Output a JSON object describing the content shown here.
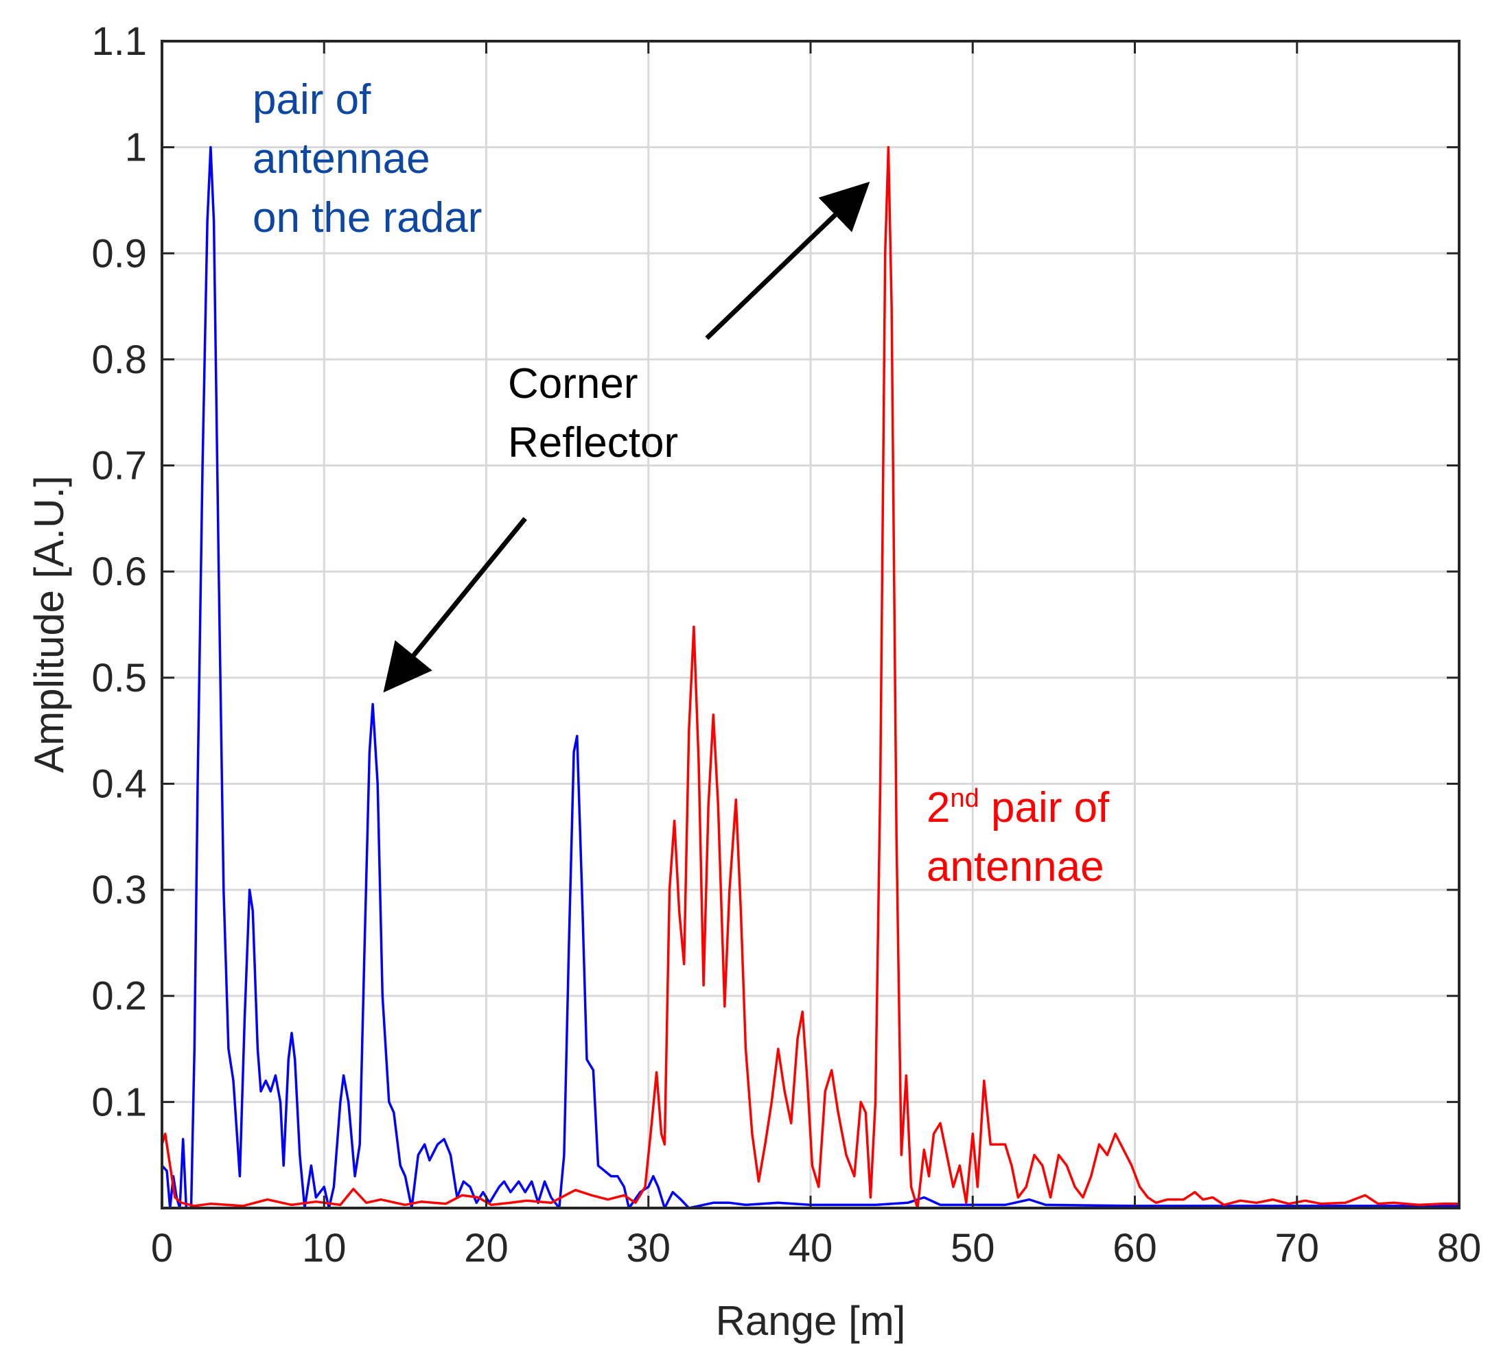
{
  "chart_data": {
    "type": "line",
    "title": "",
    "xlabel": "Range [m]",
    "ylabel": "Amplitude [A.U.]",
    "xlim": [
      0,
      80
    ],
    "ylim": [
      0,
      1.1
    ],
    "grid": true,
    "x_ticks": [
      0,
      10,
      20,
      30,
      40,
      50,
      60,
      70,
      80
    ],
    "x_tick_labels": [
      "0",
      "10",
      "20",
      "30",
      "40",
      "50",
      "60",
      "70",
      "80"
    ],
    "y_ticks": [
      0.1,
      0.2,
      0.3,
      0.4,
      0.5,
      0.6,
      0.7,
      0.8,
      0.9,
      1.0,
      1.1
    ],
    "y_tick_labels": [
      "0.1",
      "0.2",
      "0.3",
      "0.4",
      "0.5",
      "0.6",
      "0.7",
      "0.8",
      "0.9",
      "1",
      "1.1"
    ],
    "series": [
      {
        "name": "pair of antennae on the radar",
        "color": "#0000ff",
        "points": [
          [
            0,
            0.04
          ],
          [
            0.3,
            0.035
          ],
          [
            0.5,
            0.0
          ],
          [
            0.7,
            0.03
          ],
          [
            0.9,
            0.01
          ],
          [
            1.1,
            0.0
          ],
          [
            1.3,
            0.065
          ],
          [
            1.5,
            0.0
          ],
          [
            1.8,
            0.0
          ],
          [
            2.0,
            0.15
          ],
          [
            2.2,
            0.4
          ],
          [
            2.5,
            0.7
          ],
          [
            2.8,
            0.93
          ],
          [
            3.0,
            1.0
          ],
          [
            3.2,
            0.93
          ],
          [
            3.5,
            0.6
          ],
          [
            3.8,
            0.3
          ],
          [
            4.1,
            0.15
          ],
          [
            4.4,
            0.12
          ],
          [
            4.8,
            0.03
          ],
          [
            5.1,
            0.18
          ],
          [
            5.4,
            0.3
          ],
          [
            5.6,
            0.28
          ],
          [
            5.9,
            0.15
          ],
          [
            6.1,
            0.11
          ],
          [
            6.4,
            0.12
          ],
          [
            6.7,
            0.11
          ],
          [
            7.0,
            0.125
          ],
          [
            7.3,
            0.1
          ],
          [
            7.5,
            0.04
          ],
          [
            7.8,
            0.14
          ],
          [
            8.0,
            0.165
          ],
          [
            8.2,
            0.14
          ],
          [
            8.5,
            0.05
          ],
          [
            8.8,
            0.0
          ],
          [
            9.2,
            0.04
          ],
          [
            9.5,
            0.01
          ],
          [
            10.0,
            0.02
          ],
          [
            10.3,
            0.0
          ],
          [
            10.6,
            0.02
          ],
          [
            11.0,
            0.1
          ],
          [
            11.2,
            0.125
          ],
          [
            11.5,
            0.1
          ],
          [
            11.9,
            0.03
          ],
          [
            12.2,
            0.06
          ],
          [
            12.5,
            0.25
          ],
          [
            12.8,
            0.43
          ],
          [
            13.0,
            0.475
          ],
          [
            13.3,
            0.4
          ],
          [
            13.6,
            0.2
          ],
          [
            14.0,
            0.1
          ],
          [
            14.3,
            0.09
          ],
          [
            14.7,
            0.04
          ],
          [
            15.0,
            0.03
          ],
          [
            15.4,
            0.0
          ],
          [
            15.8,
            0.05
          ],
          [
            16.2,
            0.06
          ],
          [
            16.5,
            0.045
          ],
          [
            17.0,
            0.06
          ],
          [
            17.4,
            0.065
          ],
          [
            17.8,
            0.05
          ],
          [
            18.2,
            0.01
          ],
          [
            18.6,
            0.025
          ],
          [
            19.0,
            0.02
          ],
          [
            19.4,
            0.005
          ],
          [
            19.8,
            0.015
          ],
          [
            20.2,
            0.005
          ],
          [
            20.8,
            0.02
          ],
          [
            21.1,
            0.025
          ],
          [
            21.5,
            0.015
          ],
          [
            22.0,
            0.025
          ],
          [
            22.4,
            0.015
          ],
          [
            22.8,
            0.025
          ],
          [
            23.2,
            0.005
          ],
          [
            23.6,
            0.025
          ],
          [
            24.0,
            0.01
          ],
          [
            24.5,
            0.0
          ],
          [
            24.8,
            0.05
          ],
          [
            25.1,
            0.25
          ],
          [
            25.4,
            0.43
          ],
          [
            25.6,
            0.445
          ],
          [
            25.9,
            0.3
          ],
          [
            26.2,
            0.14
          ],
          [
            26.6,
            0.13
          ],
          [
            26.9,
            0.04
          ],
          [
            27.3,
            0.035
          ],
          [
            27.7,
            0.03
          ],
          [
            28.1,
            0.03
          ],
          [
            28.5,
            0.02
          ],
          [
            28.8,
            0.0
          ],
          [
            29.5,
            0.015
          ],
          [
            30.0,
            0.02
          ],
          [
            30.3,
            0.03
          ],
          [
            30.6,
            0.02
          ],
          [
            31.0,
            0.0
          ],
          [
            31.5,
            0.015
          ],
          [
            32.0,
            0.008
          ],
          [
            32.5,
            0.0
          ],
          [
            34.0,
            0.005
          ],
          [
            35.0,
            0.005
          ],
          [
            36.0,
            0.003
          ],
          [
            38.0,
            0.005
          ],
          [
            40.0,
            0.003
          ],
          [
            42.0,
            0.003
          ],
          [
            44.0,
            0.003
          ],
          [
            46.0,
            0.005
          ],
          [
            47.0,
            0.01
          ],
          [
            48.0,
            0.003
          ],
          [
            52.0,
            0.003
          ],
          [
            53.5,
            0.008
          ],
          [
            54.5,
            0.003
          ],
          [
            60.0,
            0.002
          ],
          [
            70.0,
            0.002
          ],
          [
            80.0,
            0.002
          ]
        ]
      },
      {
        "name": "2nd pair of antennae",
        "color": "#ff0000",
        "points": [
          [
            0,
            0.06
          ],
          [
            0.2,
            0.07
          ],
          [
            0.5,
            0.04
          ],
          [
            0.8,
            0.01
          ],
          [
            1.2,
            0.005
          ],
          [
            2,
            0.002
          ],
          [
            3,
            0.004
          ],
          [
            5,
            0.002
          ],
          [
            6.5,
            0.008
          ],
          [
            8,
            0.003
          ],
          [
            9.5,
            0.006
          ],
          [
            11,
            0.003
          ],
          [
            11.8,
            0.018
          ],
          [
            12.6,
            0.005
          ],
          [
            13.5,
            0.008
          ],
          [
            15,
            0.003
          ],
          [
            16,
            0.006
          ],
          [
            17.5,
            0.004
          ],
          [
            18.5,
            0.012
          ],
          [
            19.5,
            0.01
          ],
          [
            20.3,
            0.003
          ],
          [
            21.5,
            0.005
          ],
          [
            22.5,
            0.007
          ],
          [
            24,
            0.005
          ],
          [
            25.5,
            0.017
          ],
          [
            26.5,
            0.012
          ],
          [
            27.5,
            0.008
          ],
          [
            28.5,
            0.012
          ],
          [
            29.2,
            0.005
          ],
          [
            29.8,
            0.02
          ],
          [
            30.2,
            0.08
          ],
          [
            30.5,
            0.128
          ],
          [
            30.8,
            0.07
          ],
          [
            31.0,
            0.06
          ],
          [
            31.3,
            0.3
          ],
          [
            31.6,
            0.365
          ],
          [
            31.9,
            0.28
          ],
          [
            32.2,
            0.23
          ],
          [
            32.5,
            0.45
          ],
          [
            32.8,
            0.548
          ],
          [
            33.1,
            0.42
          ],
          [
            33.4,
            0.21
          ],
          [
            33.7,
            0.38
          ],
          [
            34.0,
            0.465
          ],
          [
            34.3,
            0.38
          ],
          [
            34.7,
            0.19
          ],
          [
            35.0,
            0.3
          ],
          [
            35.4,
            0.385
          ],
          [
            35.7,
            0.28
          ],
          [
            36.0,
            0.15
          ],
          [
            36.4,
            0.07
          ],
          [
            36.8,
            0.025
          ],
          [
            37.2,
            0.06
          ],
          [
            37.6,
            0.1
          ],
          [
            38.0,
            0.15
          ],
          [
            38.4,
            0.11
          ],
          [
            38.8,
            0.08
          ],
          [
            39.2,
            0.16
          ],
          [
            39.5,
            0.185
          ],
          [
            39.8,
            0.12
          ],
          [
            40.1,
            0.04
          ],
          [
            40.5,
            0.02
          ],
          [
            40.9,
            0.11
          ],
          [
            41.3,
            0.13
          ],
          [
            41.7,
            0.09
          ],
          [
            42.2,
            0.05
          ],
          [
            42.7,
            0.03
          ],
          [
            43.1,
            0.1
          ],
          [
            43.4,
            0.09
          ],
          [
            43.7,
            0.01
          ],
          [
            44.0,
            0.1
          ],
          [
            44.3,
            0.4
          ],
          [
            44.6,
            0.9
          ],
          [
            44.8,
            1.0
          ],
          [
            45.0,
            0.85
          ],
          [
            45.3,
            0.35
          ],
          [
            45.6,
            0.05
          ],
          [
            45.9,
            0.125
          ],
          [
            46.2,
            0.02
          ],
          [
            46.6,
            0.0
          ],
          [
            47.0,
            0.055
          ],
          [
            47.3,
            0.03
          ],
          [
            47.6,
            0.07
          ],
          [
            48.0,
            0.08
          ],
          [
            48.4,
            0.05
          ],
          [
            48.8,
            0.02
          ],
          [
            49.2,
            0.04
          ],
          [
            49.6,
            0.005
          ],
          [
            50.0,
            0.07
          ],
          [
            50.3,
            0.02
          ],
          [
            50.7,
            0.12
          ],
          [
            51.1,
            0.06
          ],
          [
            51.5,
            0.06
          ],
          [
            52.0,
            0.06
          ],
          [
            52.4,
            0.04
          ],
          [
            52.8,
            0.01
          ],
          [
            53.3,
            0.02
          ],
          [
            53.8,
            0.05
          ],
          [
            54.3,
            0.04
          ],
          [
            54.8,
            0.01
          ],
          [
            55.3,
            0.05
          ],
          [
            55.8,
            0.04
          ],
          [
            56.3,
            0.02
          ],
          [
            56.8,
            0.01
          ],
          [
            57.3,
            0.03
          ],
          [
            57.8,
            0.06
          ],
          [
            58.3,
            0.05
          ],
          [
            58.8,
            0.07
          ],
          [
            59.3,
            0.055
          ],
          [
            59.8,
            0.04
          ],
          [
            60.3,
            0.02
          ],
          [
            60.8,
            0.01
          ],
          [
            61.3,
            0.005
          ],
          [
            62.0,
            0.008
          ],
          [
            63.0,
            0.008
          ],
          [
            63.7,
            0.015
          ],
          [
            64.2,
            0.008
          ],
          [
            64.8,
            0.01
          ],
          [
            65.5,
            0.003
          ],
          [
            66.5,
            0.007
          ],
          [
            67.5,
            0.005
          ],
          [
            68.5,
            0.008
          ],
          [
            69.5,
            0.004
          ],
          [
            70.5,
            0.007
          ],
          [
            71.5,
            0.004
          ],
          [
            73.0,
            0.005
          ],
          [
            74.2,
            0.012
          ],
          [
            75.0,
            0.004
          ],
          [
            76.0,
            0.005
          ],
          [
            77.5,
            0.003
          ],
          [
            79.0,
            0.004
          ],
          [
            80.0,
            0.004
          ]
        ]
      }
    ],
    "annotations": {
      "blue_label": [
        "pair of",
        "antennae",
        "on the radar"
      ],
      "red_label_prefix": "2",
      "red_label_sup": "nd",
      "red_label_rest": " pair of",
      "red_label_line2": "antennae",
      "center_label": [
        "Corner",
        "Reflector"
      ]
    },
    "arrows": [
      {
        "from": [
          22.4,
          0.65
        ],
        "to": [
          14.4,
          0.5
        ]
      },
      {
        "from": [
          33.6,
          0.82
        ],
        "to": [
          42.8,
          0.955
        ]
      }
    ],
    "colors": {
      "blue": "#0000ff",
      "blue_text": "#0d47a1",
      "red": "#ff0000",
      "black": "#000000",
      "grid": "#d9d9d9",
      "axis": "#262626"
    }
  }
}
